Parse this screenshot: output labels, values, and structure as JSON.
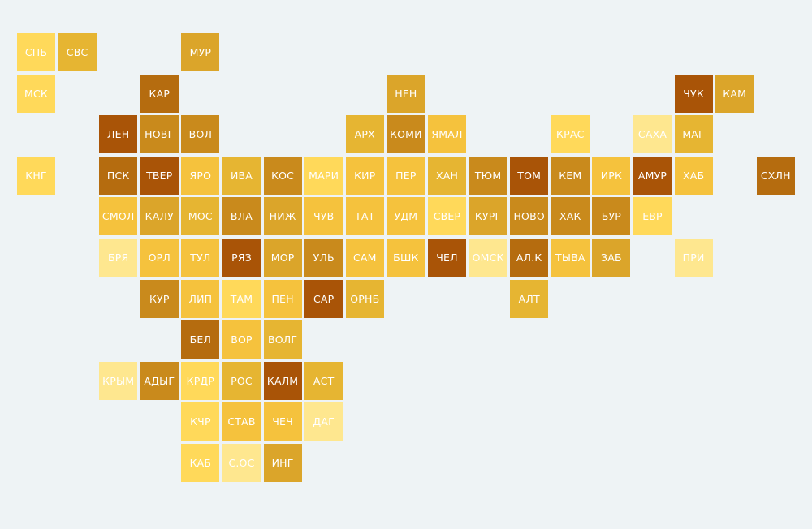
{
  "palette": {
    "c0": "#fee78f",
    "c1": "#ffd95a",
    "c2": "#f5c23d",
    "c3": "#e6b532",
    "c4": "#dba52a",
    "c5": "#c98a1c",
    "c6": "#b56c0f",
    "c7": "#a95407"
  },
  "regions": [
    {
      "code": "СПБ",
      "col": 0,
      "row": 0,
      "shade": "c1"
    },
    {
      "code": "СВС",
      "col": 1,
      "row": 0,
      "shade": "c3"
    },
    {
      "code": "МУР",
      "col": 4,
      "row": 0,
      "shade": "c4"
    },
    {
      "code": "МСК",
      "col": 0,
      "row": 1,
      "shade": "c1"
    },
    {
      "code": "КАР",
      "col": 3,
      "row": 1,
      "shade": "c6"
    },
    {
      "code": "НЕН",
      "col": 9,
      "row": 1,
      "shade": "c4"
    },
    {
      "code": "ЧУК",
      "col": 16,
      "row": 1,
      "shade": "c7"
    },
    {
      "code": "КАМ",
      "col": 17,
      "row": 1,
      "shade": "c4"
    },
    {
      "code": "ЛЕН",
      "col": 2,
      "row": 2,
      "shade": "c7"
    },
    {
      "code": "НОВГ",
      "col": 3,
      "row": 2,
      "shade": "c5"
    },
    {
      "code": "ВОЛ",
      "col": 4,
      "row": 2,
      "shade": "c5"
    },
    {
      "code": "АРХ",
      "col": 8,
      "row": 2,
      "shade": "c3"
    },
    {
      "code": "КОМИ",
      "col": 9,
      "row": 2,
      "shade": "c5"
    },
    {
      "code": "ЯМАЛ",
      "col": 10,
      "row": 2,
      "shade": "c2"
    },
    {
      "code": "КРАС",
      "col": 13,
      "row": 2,
      "shade": "c1"
    },
    {
      "code": "САХА",
      "col": 15,
      "row": 2,
      "shade": "c0"
    },
    {
      "code": "МАГ",
      "col": 16,
      "row": 2,
      "shade": "c3"
    },
    {
      "code": "КНГ",
      "col": 0,
      "row": 3,
      "shade": "c1"
    },
    {
      "code": "ПСК",
      "col": 2,
      "row": 3,
      "shade": "c6"
    },
    {
      "code": "ТВЕР",
      "col": 3,
      "row": 3,
      "shade": "c7"
    },
    {
      "code": "ЯРО",
      "col": 4,
      "row": 3,
      "shade": "c2"
    },
    {
      "code": "ИВА",
      "col": 5,
      "row": 3,
      "shade": "c3"
    },
    {
      "code": "КОС",
      "col": 6,
      "row": 3,
      "shade": "c5"
    },
    {
      "code": "МАРИ",
      "col": 7,
      "row": 3,
      "shade": "c1"
    },
    {
      "code": "КИР",
      "col": 8,
      "row": 3,
      "shade": "c2"
    },
    {
      "code": "ПЕР",
      "col": 9,
      "row": 3,
      "shade": "c2"
    },
    {
      "code": "ХАН",
      "col": 10,
      "row": 3,
      "shade": "c3"
    },
    {
      "code": "ТЮМ",
      "col": 11,
      "row": 3,
      "shade": "c5"
    },
    {
      "code": "ТОМ",
      "col": 12,
      "row": 3,
      "shade": "c7"
    },
    {
      "code": "КЕМ",
      "col": 13,
      "row": 3,
      "shade": "c5"
    },
    {
      "code": "ИРК",
      "col": 14,
      "row": 3,
      "shade": "c2"
    },
    {
      "code": "АМУР",
      "col": 15,
      "row": 3,
      "shade": "c7"
    },
    {
      "code": "ХАБ",
      "col": 16,
      "row": 3,
      "shade": "c2"
    },
    {
      "code": "СХЛН",
      "col": 18,
      "row": 3,
      "shade": "c6"
    },
    {
      "code": "СМОЛ",
      "col": 2,
      "row": 4,
      "shade": "c2"
    },
    {
      "code": "КАЛУ",
      "col": 3,
      "row": 4,
      "shade": "c4"
    },
    {
      "code": "МОС",
      "col": 4,
      "row": 4,
      "shade": "c3"
    },
    {
      "code": "ВЛА",
      "col": 5,
      "row": 4,
      "shade": "c5"
    },
    {
      "code": "НИЖ",
      "col": 6,
      "row": 4,
      "shade": "c4"
    },
    {
      "code": "ЧУВ",
      "col": 7,
      "row": 4,
      "shade": "c2"
    },
    {
      "code": "ТАТ",
      "col": 8,
      "row": 4,
      "shade": "c2"
    },
    {
      "code": "УДМ",
      "col": 9,
      "row": 4,
      "shade": "c2"
    },
    {
      "code": "СВЕР",
      "col": 10,
      "row": 4,
      "shade": "c1"
    },
    {
      "code": "КУРГ",
      "col": 11,
      "row": 4,
      "shade": "c4"
    },
    {
      "code": "НОВО",
      "col": 12,
      "row": 4,
      "shade": "c5"
    },
    {
      "code": "ХАК",
      "col": 13,
      "row": 4,
      "shade": "c5"
    },
    {
      "code": "БУР",
      "col": 14,
      "row": 4,
      "shade": "c5"
    },
    {
      "code": "ЕВР",
      "col": 15,
      "row": 4,
      "shade": "c1"
    },
    {
      "code": "БРЯ",
      "col": 2,
      "row": 5,
      "shade": "c0"
    },
    {
      "code": "ОРЛ",
      "col": 3,
      "row": 5,
      "shade": "c2"
    },
    {
      "code": "ТУЛ",
      "col": 4,
      "row": 5,
      "shade": "c2"
    },
    {
      "code": "РЯЗ",
      "col": 5,
      "row": 5,
      "shade": "c7"
    },
    {
      "code": "МОР",
      "col": 6,
      "row": 5,
      "shade": "c4"
    },
    {
      "code": "УЛЬ",
      "col": 7,
      "row": 5,
      "shade": "c5"
    },
    {
      "code": "САМ",
      "col": 8,
      "row": 5,
      "shade": "c2"
    },
    {
      "code": "БШК",
      "col": 9,
      "row": 5,
      "shade": "c2"
    },
    {
      "code": "ЧЕЛ",
      "col": 10,
      "row": 5,
      "shade": "c7"
    },
    {
      "code": "ОМСК",
      "col": 11,
      "row": 5,
      "shade": "c0"
    },
    {
      "code": "АЛ.К",
      "col": 12,
      "row": 5,
      "shade": "c6"
    },
    {
      "code": "ТЫВА",
      "col": 13,
      "row": 5,
      "shade": "c2"
    },
    {
      "code": "ЗАБ",
      "col": 14,
      "row": 5,
      "shade": "c4"
    },
    {
      "code": "ПРИ",
      "col": 16,
      "row": 5,
      "shade": "c0"
    },
    {
      "code": "КУР",
      "col": 3,
      "row": 6,
      "shade": "c5"
    },
    {
      "code": "ЛИП",
      "col": 4,
      "row": 6,
      "shade": "c2"
    },
    {
      "code": "ТАМ",
      "col": 5,
      "row": 6,
      "shade": "c1"
    },
    {
      "code": "ПЕН",
      "col": 6,
      "row": 6,
      "shade": "c2"
    },
    {
      "code": "САР",
      "col": 7,
      "row": 6,
      "shade": "c7"
    },
    {
      "code": "ОРНБ",
      "col": 8,
      "row": 6,
      "shade": "c3"
    },
    {
      "code": "АЛТ",
      "col": 12,
      "row": 6,
      "shade": "c3"
    },
    {
      "code": "БЕЛ",
      "col": 4,
      "row": 7,
      "shade": "c6"
    },
    {
      "code": "ВОР",
      "col": 5,
      "row": 7,
      "shade": "c2"
    },
    {
      "code": "ВОЛГ",
      "col": 6,
      "row": 7,
      "shade": "c3"
    },
    {
      "code": "КРЫМ",
      "col": 2,
      "row": 8,
      "shade": "c0"
    },
    {
      "code": "АДЫГ",
      "col": 3,
      "row": 8,
      "shade": "c5"
    },
    {
      "code": "КРДР",
      "col": 4,
      "row": 8,
      "shade": "c1"
    },
    {
      "code": "РОС",
      "col": 5,
      "row": 8,
      "shade": "c3"
    },
    {
      "code": "КАЛМ",
      "col": 6,
      "row": 8,
      "shade": "c7"
    },
    {
      "code": "АСТ",
      "col": 7,
      "row": 8,
      "shade": "c3"
    },
    {
      "code": "КЧР",
      "col": 4,
      "row": 9,
      "shade": "c1"
    },
    {
      "code": "СТАВ",
      "col": 5,
      "row": 9,
      "shade": "c2"
    },
    {
      "code": "ЧЕЧ",
      "col": 6,
      "row": 9,
      "shade": "c2"
    },
    {
      "code": "ДАГ",
      "col": 7,
      "row": 9,
      "shade": "c0"
    },
    {
      "code": "КАБ",
      "col": 4,
      "row": 10,
      "shade": "c1"
    },
    {
      "code": "С.ОС",
      "col": 5,
      "row": 10,
      "shade": "c0"
    },
    {
      "code": "ИНГ",
      "col": 6,
      "row": 10,
      "shade": "c4"
    }
  ]
}
